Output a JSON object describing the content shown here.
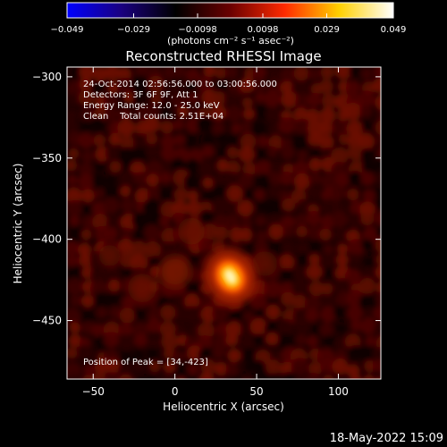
{
  "colorbar": {
    "tick_labels": [
      "-0.049",
      "-0.029",
      "-0.0098",
      "0.0098",
      "0.029",
      "0.049"
    ],
    "range": [
      -0.049,
      0.049
    ],
    "colors": [
      "#0000ff",
      "#1a0080",
      "#000000",
      "#6a0000",
      "#ff2a00",
      "#ffd000",
      "#ffffff"
    ]
  },
  "chart_data": {
    "type": "heatmap",
    "title": "Reconstructed RHESSI Image",
    "xlabel": "Heliocentric X (arcsec)",
    "ylabel": "Heliocentric Y (arcsec)",
    "colorbar_label": "(photons cm⁻² s⁻¹ asec⁻²)",
    "xlim": [
      -66,
      126
    ],
    "ylim": [
      -486,
      -294
    ],
    "x_ticks": [
      -50,
      0,
      50,
      100
    ],
    "y_ticks": [
      -300,
      -350,
      -400,
      -450
    ],
    "peak": {
      "x": 34,
      "y": -423
    },
    "annotations": [
      "24-Oct-2014 02:56:56.000 to 03:00:56.000",
      "Detectors: 3F 6F 9F, Att 1",
      "Energy Range: 12.0 - 25.0 keV",
      "Clean    Total counts: 2.51E+04"
    ],
    "peak_label": "Position of Peak = [34,-423]"
  },
  "timestamp": "18-May-2022 15:09"
}
